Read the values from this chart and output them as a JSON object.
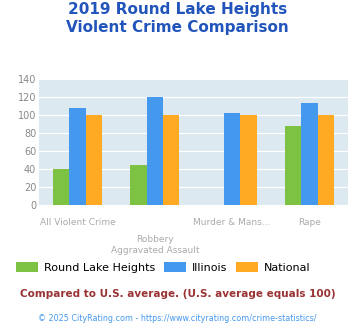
{
  "title": "2019 Round Lake Heights\nViolent Crime Comparison",
  "cat_labels_line1": [
    "",
    "Robbery",
    "Murder & Mans...",
    ""
  ],
  "cat_labels_line2": [
    "All Violent Crime",
    "Aggravated Assault",
    "",
    "Rape"
  ],
  "series": {
    "Round Lake Heights": [
      40,
      44,
      0,
      88
    ],
    "Illinois": [
      108,
      120,
      102,
      113
    ],
    "National": [
      100,
      100,
      100,
      100
    ]
  },
  "colors": {
    "Round Lake Heights": "#7dc242",
    "Illinois": "#4499ee",
    "National": "#ffaa22"
  },
  "ylim": [
    0,
    140
  ],
  "yticks": [
    0,
    20,
    40,
    60,
    80,
    100,
    120,
    140
  ],
  "title_color": "#2255bb",
  "title_fontsize": 11,
  "plot_bg": "#dce9f0",
  "xlabel_color": "#aaaaaa",
  "footer1": "Compared to U.S. average. (U.S. average equals 100)",
  "footer2": "© 2025 CityRating.com - https://www.cityrating.com/crime-statistics/",
  "footer1_color": "#993333",
  "footer2_color": "#4499ee",
  "legend_labels": [
    "Round Lake Heights",
    "Illinois",
    "National"
  ]
}
